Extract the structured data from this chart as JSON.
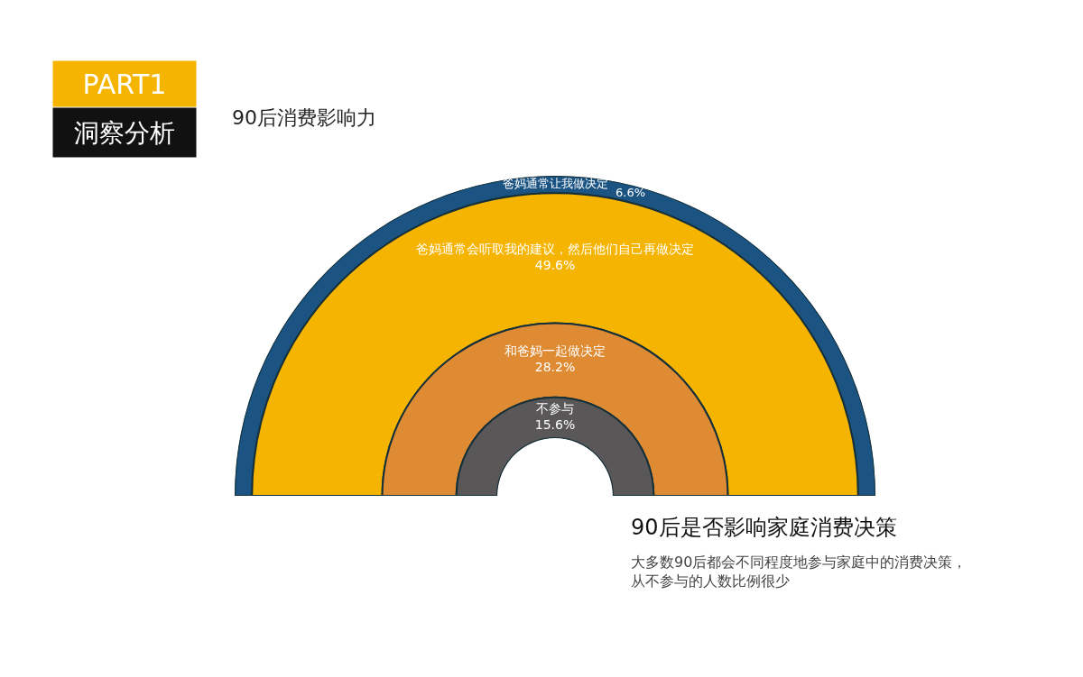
{
  "chart_data": {
    "type": "other",
    "title": "90后消费影响力",
    "subtitle": "90后是否影响家庭消费决策",
    "categories": [
      "爸妈通常让我做决定",
      "爸妈通常会听取我的建议，然后他们自己再做决定",
      "和爸妈一起做决定",
      "不参与"
    ],
    "values": [
      6.6,
      49.6,
      28.2,
      15.6
    ],
    "value_labels": [
      "6.6%",
      "49.6%",
      "28.2%",
      "15.6%"
    ],
    "colors": [
      "#1b5482",
      "#f5b400",
      "#de8b33",
      "#595757"
    ],
    "annotations": [
      "PART1",
      "洞察分析",
      "大多数90后都会不同程度地参与家庭中的消费决策，从不参与的人数比例很少"
    ]
  }
}
